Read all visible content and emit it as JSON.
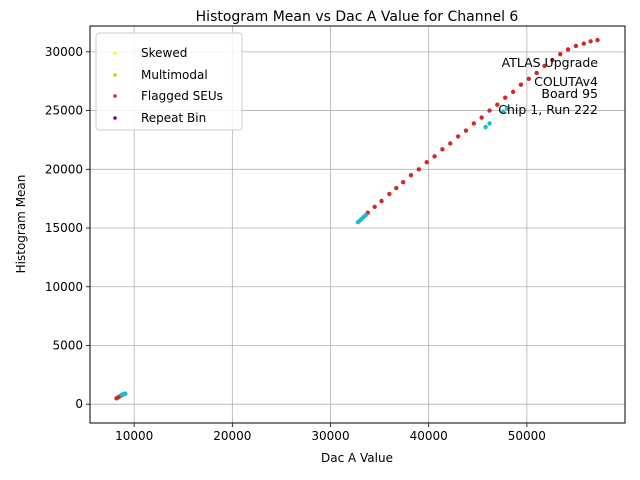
{
  "chart_data": {
    "type": "scatter",
    "title": "Histogram Mean vs Dac A Value for Channel 6",
    "xlabel": "Dac A Value",
    "ylabel": "Histogram Mean",
    "xlim": [
      5500,
      60000
    ],
    "ylim": [
      -1600,
      32200
    ],
    "xticks": [
      10000,
      20000,
      30000,
      40000,
      50000
    ],
    "yticks": [
      0,
      5000,
      10000,
      15000,
      20000,
      25000,
      30000
    ],
    "xtick_labels": [
      "10000",
      "20000",
      "30000",
      "40000",
      "50000"
    ],
    "ytick_labels": [
      "0",
      "5000",
      "10000",
      "15000",
      "20000",
      "25000",
      "30000"
    ],
    "grid": true,
    "legend_placement": "top-left",
    "legend": [
      {
        "label": "Skewed",
        "color": "#ffff00"
      },
      {
        "label": "Multimodal",
        "color": "#99ee00"
      },
      {
        "label": "Flagged SEUs",
        "color": "#d62728"
      },
      {
        "label": "Repeat Bin",
        "color": "#800080"
      }
    ],
    "annotation": [
      "ATLAS Upgrade",
      "COLUTAv4",
      "Board 95",
      "Chip 1, Run 222"
    ],
    "series": [
      {
        "name": "Flagged SEUs",
        "color": "#d62728",
        "x": [
          8200,
          8400,
          8600,
          8800,
          33800,
          34500,
          35200,
          36000,
          36700,
          37400,
          38200,
          39000,
          39800,
          40600,
          41400,
          42200,
          43000,
          43800,
          44600,
          45400,
          46200,
          47000,
          47800,
          48600,
          49400,
          50200,
          51000,
          51800,
          52600,
          53400,
          54200,
          55000,
          55800,
          56500,
          57200
        ],
        "y": [
          500,
          600,
          700,
          800,
          16300,
          16800,
          17300,
          17900,
          18400,
          18900,
          19500,
          20000,
          20600,
          21100,
          21700,
          22200,
          22800,
          23300,
          23900,
          24400,
          25000,
          25500,
          26100,
          26600,
          27200,
          27700,
          28200,
          28800,
          29300,
          29800,
          30200,
          30500,
          30700,
          30900,
          31000
        ]
      },
      {
        "name": "",
        "color": "#17becf",
        "x": [
          8700,
          8900,
          9100,
          32800,
          33000,
          33200,
          33400,
          33600,
          45800,
          46200,
          47600,
          48000
        ],
        "y": [
          800,
          850,
          900,
          15500,
          15650,
          15800,
          15950,
          16100,
          23600,
          23900,
          24900,
          25200
        ]
      }
    ]
  }
}
